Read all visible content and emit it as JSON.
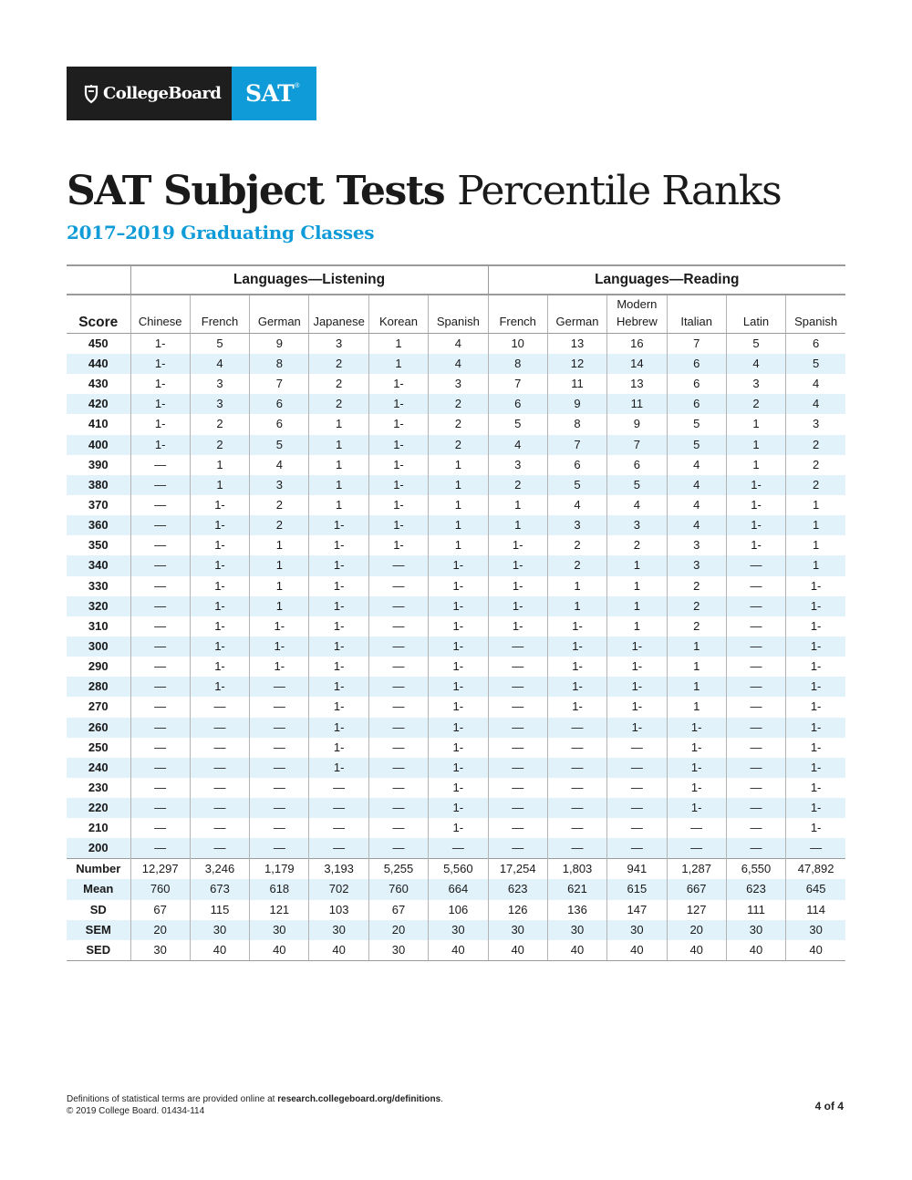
{
  "logo": {
    "collegeboard_text": "CollegeBoard",
    "sat_text": "SAT",
    "trademark": "®"
  },
  "title": {
    "bold": "SAT Subject Tests",
    "light": "Percentile Ranks"
  },
  "subtitle": "2017–2019 Graduating Classes",
  "table": {
    "groups": [
      "Languages—Listening",
      "Languages—Reading"
    ],
    "score_header": "Score",
    "columns": [
      [
        "Chinese"
      ],
      [
        "French"
      ],
      [
        "German"
      ],
      [
        "Japanese"
      ],
      [
        "Korean"
      ],
      [
        "Spanish"
      ],
      [
        "French"
      ],
      [
        "German"
      ],
      [
        "Modern",
        "Hebrew"
      ],
      [
        "Italian"
      ],
      [
        "Latin"
      ],
      [
        "Spanish"
      ]
    ],
    "rows": [
      [
        "450",
        "1-",
        "5",
        "9",
        "3",
        "1",
        "4",
        "10",
        "13",
        "16",
        "7",
        "5",
        "6"
      ],
      [
        "440",
        "1-",
        "4",
        "8",
        "2",
        "1",
        "4",
        "8",
        "12",
        "14",
        "6",
        "4",
        "5"
      ],
      [
        "430",
        "1-",
        "3",
        "7",
        "2",
        "1-",
        "3",
        "7",
        "11",
        "13",
        "6",
        "3",
        "4"
      ],
      [
        "420",
        "1-",
        "3",
        "6",
        "2",
        "1-",
        "2",
        "6",
        "9",
        "11",
        "6",
        "2",
        "4"
      ],
      [
        "410",
        "1-",
        "2",
        "6",
        "1",
        "1-",
        "2",
        "5",
        "8",
        "9",
        "5",
        "1",
        "3"
      ],
      [
        "400",
        "1-",
        "2",
        "5",
        "1",
        "1-",
        "2",
        "4",
        "7",
        "7",
        "5",
        "1",
        "2"
      ],
      [
        "390",
        "—",
        "1",
        "4",
        "1",
        "1-",
        "1",
        "3",
        "6",
        "6",
        "4",
        "1",
        "2"
      ],
      [
        "380",
        "—",
        "1",
        "3",
        "1",
        "1-",
        "1",
        "2",
        "5",
        "5",
        "4",
        "1-",
        "2"
      ],
      [
        "370",
        "—",
        "1-",
        "2",
        "1",
        "1-",
        "1",
        "1",
        "4",
        "4",
        "4",
        "1-",
        "1"
      ],
      [
        "360",
        "—",
        "1-",
        "2",
        "1-",
        "1-",
        "1",
        "1",
        "3",
        "3",
        "4",
        "1-",
        "1"
      ],
      [
        "350",
        "—",
        "1-",
        "1",
        "1-",
        "1-",
        "1",
        "1-",
        "2",
        "2",
        "3",
        "1-",
        "1"
      ],
      [
        "340",
        "—",
        "1-",
        "1",
        "1-",
        "—",
        "1-",
        "1-",
        "2",
        "1",
        "3",
        "—",
        "1"
      ],
      [
        "330",
        "—",
        "1-",
        "1",
        "1-",
        "—",
        "1-",
        "1-",
        "1",
        "1",
        "2",
        "—",
        "1-"
      ],
      [
        "320",
        "—",
        "1-",
        "1",
        "1-",
        "—",
        "1-",
        "1-",
        "1",
        "1",
        "2",
        "—",
        "1-"
      ],
      [
        "310",
        "—",
        "1-",
        "1-",
        "1-",
        "—",
        "1-",
        "1-",
        "1-",
        "1",
        "2",
        "—",
        "1-"
      ],
      [
        "300",
        "—",
        "1-",
        "1-",
        "1-",
        "—",
        "1-",
        "—",
        "1-",
        "1-",
        "1",
        "—",
        "1-"
      ],
      [
        "290",
        "—",
        "1-",
        "1-",
        "1-",
        "—",
        "1-",
        "—",
        "1-",
        "1-",
        "1",
        "—",
        "1-"
      ],
      [
        "280",
        "—",
        "1-",
        "—",
        "1-",
        "—",
        "1-",
        "—",
        "1-",
        "1-",
        "1",
        "—",
        "1-"
      ],
      [
        "270",
        "—",
        "—",
        "—",
        "1-",
        "—",
        "1-",
        "—",
        "1-",
        "1-",
        "1",
        "—",
        "1-"
      ],
      [
        "260",
        "—",
        "—",
        "—",
        "1-",
        "—",
        "1-",
        "—",
        "—",
        "1-",
        "1-",
        "—",
        "1-"
      ],
      [
        "250",
        "—",
        "—",
        "—",
        "1-",
        "—",
        "1-",
        "—",
        "—",
        "—",
        "1-",
        "—",
        "1-"
      ],
      [
        "240",
        "—",
        "—",
        "—",
        "1-",
        "—",
        "1-",
        "—",
        "—",
        "—",
        "1-",
        "—",
        "1-"
      ],
      [
        "230",
        "—",
        "—",
        "—",
        "—",
        "—",
        "1-",
        "—",
        "—",
        "—",
        "1-",
        "—",
        "1-"
      ],
      [
        "220",
        "—",
        "—",
        "—",
        "—",
        "—",
        "1-",
        "—",
        "—",
        "—",
        "1-",
        "—",
        "1-"
      ],
      [
        "210",
        "—",
        "—",
        "—",
        "—",
        "—",
        "1-",
        "—",
        "—",
        "—",
        "—",
        "—",
        "1-"
      ],
      [
        "200",
        "—",
        "—",
        "—",
        "—",
        "—",
        "—",
        "—",
        "—",
        "—",
        "—",
        "—",
        "—"
      ]
    ],
    "stats": [
      [
        "Number",
        "12,297",
        "3,246",
        "1,179",
        "3,193",
        "5,255",
        "5,560",
        "17,254",
        "1,803",
        "941",
        "1,287",
        "6,550",
        "47,892"
      ],
      [
        "Mean",
        "760",
        "673",
        "618",
        "702",
        "760",
        "664",
        "623",
        "621",
        "615",
        "667",
        "623",
        "645"
      ],
      [
        "SD",
        "67",
        "115",
        "121",
        "103",
        "67",
        "106",
        "126",
        "136",
        "147",
        "127",
        "111",
        "114"
      ],
      [
        "SEM",
        "20",
        "30",
        "30",
        "30",
        "20",
        "30",
        "30",
        "30",
        "30",
        "20",
        "30",
        "30"
      ],
      [
        "SED",
        "30",
        "40",
        "40",
        "40",
        "30",
        "40",
        "40",
        "40",
        "40",
        "40",
        "40",
        "40"
      ]
    ]
  },
  "footer": {
    "note_prefix": "Definitions of statistical terms are provided online at ",
    "note_url": "research.collegeboard.org/definitions",
    "note_suffix": ".",
    "copyright": "© 2019 College Board.   01434-114",
    "page": "4 of 4"
  }
}
